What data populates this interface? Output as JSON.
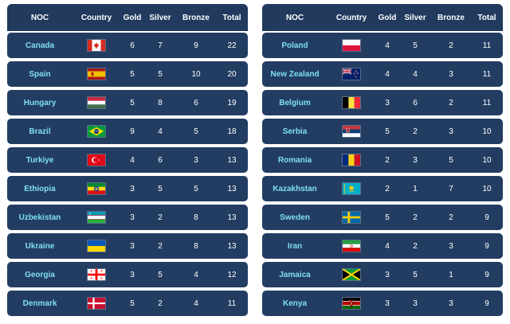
{
  "headers": {
    "noc": "NOC",
    "country": "Country",
    "gold": "Gold",
    "silver": "Silver",
    "bronze": "Bronze",
    "total": "Total"
  },
  "left": [
    {
      "noc": "Canada",
      "gold": "6",
      "silver": "7",
      "bronze": "9",
      "total": "22",
      "flag": "canada"
    },
    {
      "noc": "Spain",
      "gold": "5",
      "silver": "5",
      "bronze": "10",
      "total": "20",
      "flag": "spain"
    },
    {
      "noc": "Hungary",
      "gold": "5",
      "silver": "8",
      "bronze": "6",
      "total": "19",
      "flag": "hungary"
    },
    {
      "noc": "Brazil",
      "gold": "9",
      "silver": "4",
      "bronze": "5",
      "total": "18",
      "flag": "brazil"
    },
    {
      "noc": "Turkiye",
      "gold": "4",
      "silver": "6",
      "bronze": "3",
      "total": "13",
      "flag": "turkiye"
    },
    {
      "noc": "Ethiopia",
      "gold": "3",
      "silver": "5",
      "bronze": "5",
      "total": "13",
      "flag": "ethiopia"
    },
    {
      "noc": "Uzbekistan",
      "gold": "3",
      "silver": "2",
      "bronze": "8",
      "total": "13",
      "flag": "uzbekistan"
    },
    {
      "noc": "Ukraine",
      "gold": "3",
      "silver": "2",
      "bronze": "8",
      "total": "13",
      "flag": "ukraine"
    },
    {
      "noc": "Georgia",
      "gold": "3",
      "silver": "5",
      "bronze": "4",
      "total": "12",
      "flag": "georgia"
    },
    {
      "noc": "Denmark",
      "gold": "5",
      "silver": "2",
      "bronze": "4",
      "total": "11",
      "flag": "denmark"
    }
  ],
  "right": [
    {
      "noc": "Poland",
      "gold": "4",
      "silver": "5",
      "bronze": "2",
      "total": "11",
      "flag": "poland"
    },
    {
      "noc": "New Zealand",
      "gold": "4",
      "silver": "4",
      "bronze": "3",
      "total": "11",
      "flag": "new-zealand"
    },
    {
      "noc": "Belgium",
      "gold": "3",
      "silver": "6",
      "bronze": "2",
      "total": "11",
      "flag": "belgium"
    },
    {
      "noc": "Serbia",
      "gold": "5",
      "silver": "2",
      "bronze": "3",
      "total": "10",
      "flag": "serbia"
    },
    {
      "noc": "Romania",
      "gold": "2",
      "silver": "3",
      "bronze": "5",
      "total": "10",
      "flag": "romania"
    },
    {
      "noc": "Kazakhstan",
      "gold": "2",
      "silver": "1",
      "bronze": "7",
      "total": "10",
      "flag": "kazakhstan"
    },
    {
      "noc": "Sweden",
      "gold": "5",
      "silver": "2",
      "bronze": "2",
      "total": "9",
      "flag": "sweden"
    },
    {
      "noc": "Iran",
      "gold": "4",
      "silver": "2",
      "bronze": "3",
      "total": "9",
      "flag": "iran"
    },
    {
      "noc": "Jamaica",
      "gold": "3",
      "silver": "5",
      "bronze": "1",
      "total": "9",
      "flag": "jamaica"
    },
    {
      "noc": "Kenya",
      "gold": "3",
      "silver": "3",
      "bronze": "3",
      "total": "9",
      "flag": "kenya"
    }
  ],
  "colors": {
    "header_bg": "#213a5e",
    "row_bg": "#233d62",
    "noc_text": "#7ee0ec",
    "value_text": "#ffffff"
  }
}
